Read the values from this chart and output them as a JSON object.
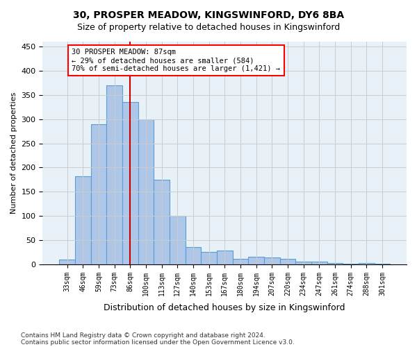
{
  "title1": "30, PROSPER MEADOW, KINGSWINFORD, DY6 8BA",
  "title2": "Size of property relative to detached houses in Kingswinford",
  "xlabel": "Distribution of detached houses by size in Kingswinford",
  "ylabel": "Number of detached properties",
  "footnote1": "Contains HM Land Registry data © Crown copyright and database right 2024.",
  "footnote2": "Contains public sector information licensed under the Open Government Licence v3.0.",
  "annotation_line1": "30 PROSPER MEADOW: 87sqm",
  "annotation_line2": "← 29% of detached houses are smaller (584)",
  "annotation_line3": "70% of semi-detached houses are larger (1,421) →",
  "bar_color": "#aec6e8",
  "bar_edge_color": "#5a9fd4",
  "marker_color": "#cc0000",
  "categories": [
    "33sqm",
    "46sqm",
    "59sqm",
    "73sqm",
    "86sqm",
    "100sqm",
    "113sqm",
    "127sqm",
    "140sqm",
    "153sqm",
    "167sqm",
    "180sqm",
    "194sqm",
    "207sqm",
    "220sqm",
    "234sqm",
    "247sqm",
    "261sqm",
    "274sqm",
    "288sqm",
    "301sqm"
  ],
  "values": [
    10,
    182,
    290,
    370,
    335,
    300,
    175,
    100,
    35,
    25,
    28,
    12,
    15,
    14,
    12,
    5,
    5,
    3,
    2,
    3,
    2
  ],
  "ylim": [
    0,
    460
  ],
  "yticks": [
    0,
    50,
    100,
    150,
    200,
    250,
    300,
    350,
    400,
    450
  ],
  "bar_marker_index": 4,
  "background_color": "#ffffff",
  "axes_bg_color": "#e8f0f8",
  "grid_color": "#cccccc"
}
